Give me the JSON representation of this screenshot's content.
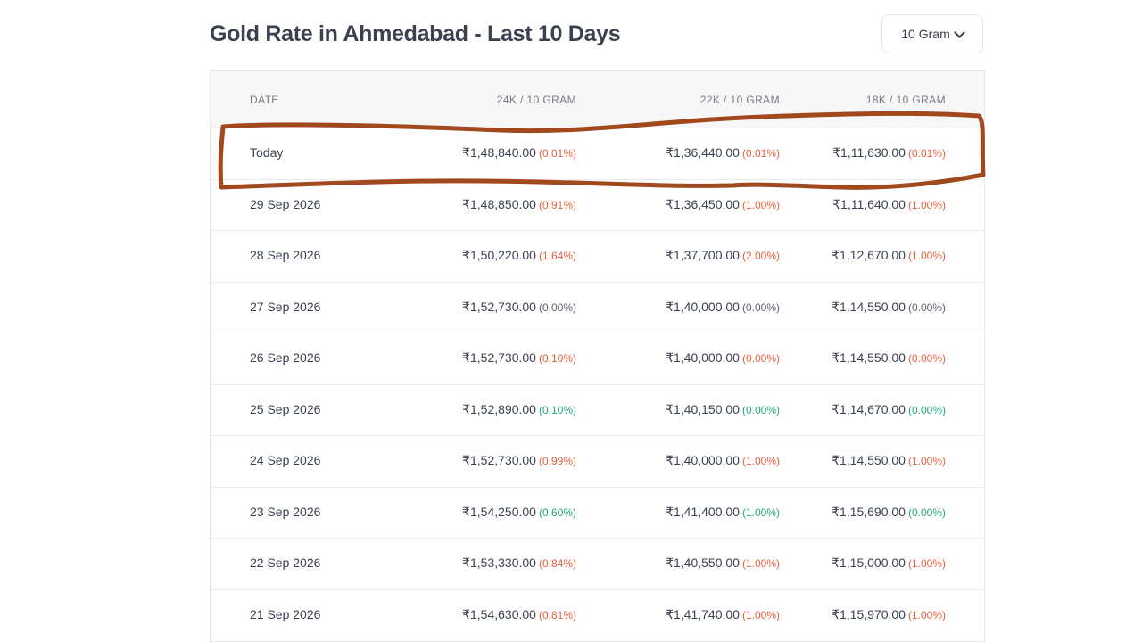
{
  "title": "Gold Rate in Ahmedabad - Last 10 Days",
  "unit_select": {
    "value": "10 Gram"
  },
  "icons": {
    "dropdown": "chevron-down-icon"
  },
  "colors": {
    "down": "#e5603f",
    "up": "#22a776",
    "flat": "#5b616d",
    "annotation": "#a1481c"
  },
  "table": {
    "headers": {
      "date": "DATE",
      "k24": "24K / 10 GRAM",
      "k22": "22K / 10 GRAM",
      "k18": "18K / 10 GRAM"
    },
    "rows": [
      {
        "date": "Today",
        "k24": "₹1,48,840.00",
        "k24_chg": "(0.01%)",
        "k24_dir": "down",
        "k22": "₹1,36,440.00",
        "k22_chg": "(0.01%)",
        "k22_dir": "down",
        "k18": "₹1,11,630.00",
        "k18_chg": "(0.01%)",
        "k18_dir": "down"
      },
      {
        "date": "29 Sep 2026",
        "k24": "₹1,48,850.00",
        "k24_chg": "(0.91%)",
        "k24_dir": "down",
        "k22": "₹1,36,450.00",
        "k22_chg": "(1.00%)",
        "k22_dir": "down",
        "k18": "₹1,11,640.00",
        "k18_chg": "(1.00%)",
        "k18_dir": "down"
      },
      {
        "date": "28 Sep 2026",
        "k24": "₹1,50,220.00",
        "k24_chg": "(1.64%)",
        "k24_dir": "down",
        "k22": "₹1,37,700.00",
        "k22_chg": "(2.00%)",
        "k22_dir": "down",
        "k18": "₹1,12,670.00",
        "k18_chg": "(1.00%)",
        "k18_dir": "down"
      },
      {
        "date": "27 Sep 2026",
        "k24": "₹1,52,730.00",
        "k24_chg": "(0.00%)",
        "k24_dir": "flat",
        "k22": "₹1,40,000.00",
        "k22_chg": "(0.00%)",
        "k22_dir": "flat",
        "k18": "₹1,14,550.00",
        "k18_chg": "(0.00%)",
        "k18_dir": "flat"
      },
      {
        "date": "26 Sep 2026",
        "k24": "₹1,52,730.00",
        "k24_chg": "(0.10%)",
        "k24_dir": "down",
        "k22": "₹1,40,000.00",
        "k22_chg": "(0.00%)",
        "k22_dir": "down",
        "k18": "₹1,14,550.00",
        "k18_chg": "(0.00%)",
        "k18_dir": "down"
      },
      {
        "date": "25 Sep 2026",
        "k24": "₹1,52,890.00",
        "k24_chg": "(0.10%)",
        "k24_dir": "up",
        "k22": "₹1,40,150.00",
        "k22_chg": "(0.00%)",
        "k22_dir": "up",
        "k18": "₹1,14,670.00",
        "k18_chg": "(0.00%)",
        "k18_dir": "up"
      },
      {
        "date": "24 Sep 2026",
        "k24": "₹1,52,730.00",
        "k24_chg": "(0.99%)",
        "k24_dir": "down",
        "k22": "₹1,40,000.00",
        "k22_chg": "(1.00%)",
        "k22_dir": "down",
        "k18": "₹1,14,550.00",
        "k18_chg": "(1.00%)",
        "k18_dir": "down"
      },
      {
        "date": "23 Sep 2026",
        "k24": "₹1,54,250.00",
        "k24_chg": "(0.60%)",
        "k24_dir": "up",
        "k22": "₹1,41,400.00",
        "k22_chg": "(1.00%)",
        "k22_dir": "up",
        "k18": "₹1,15,690.00",
        "k18_chg": "(0.00%)",
        "k18_dir": "up"
      },
      {
        "date": "22 Sep 2026",
        "k24": "₹1,53,330.00",
        "k24_chg": "(0.84%)",
        "k24_dir": "down",
        "k22": "₹1,40,550.00",
        "k22_chg": "(1.00%)",
        "k22_dir": "down",
        "k18": "₹1,15,000.00",
        "k18_chg": "(1.00%)",
        "k18_dir": "down"
      },
      {
        "date": "21 Sep 2026",
        "k24": "₹1,54,630.00",
        "k24_chg": "(0.81%)",
        "k24_dir": "down",
        "k22": "₹1,41,740.00",
        "k22_chg": "(1.00%)",
        "k22_dir": "down",
        "k18": "₹1,15,970.00",
        "k18_chg": "(1.00%)",
        "k18_dir": "down"
      }
    ]
  }
}
